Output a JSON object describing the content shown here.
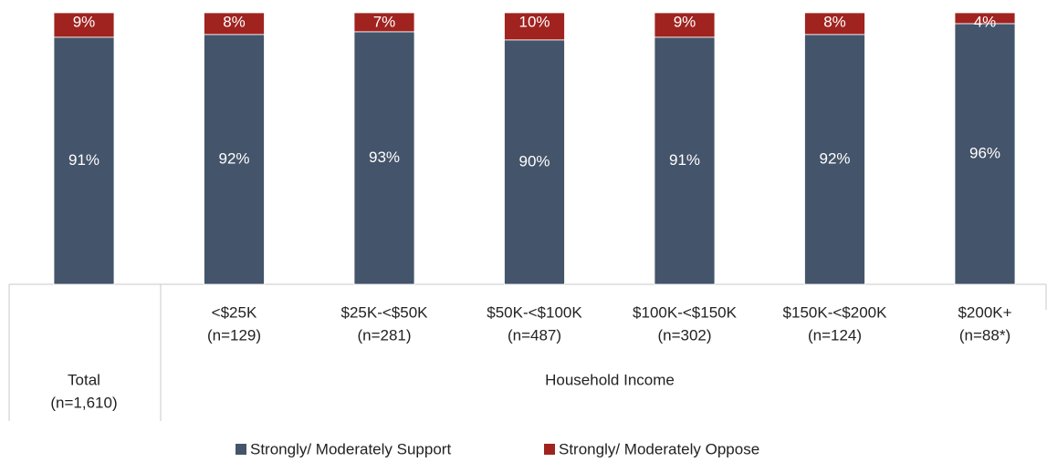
{
  "chart_data": {
    "type": "stacked_bar",
    "categories": [
      [
        "Total",
        "(n=1,610)"
      ],
      [
        "<$25K",
        "(n=129)"
      ],
      [
        "$25K-<$50K",
        "(n=281)"
      ],
      [
        "$50K-<$100K",
        "(n=487)"
      ],
      [
        "$100K-<$150K",
        "(n=302)"
      ],
      [
        "$150K-<$200K",
        "(n=124)"
      ],
      [
        "$200K+",
        "(n=88*)"
      ]
    ],
    "group_label": "Household Income",
    "series": [
      {
        "name": "Strongly/ Moderately Support",
        "color": "#44546a",
        "values": [
          91,
          92,
          93,
          90,
          91,
          92,
          96
        ],
        "value_labels": [
          "91%",
          "92%",
          "93%",
          "90%",
          "91%",
          "92%",
          "96%"
        ]
      },
      {
        "name": "Strongly/ Moderately Oppose",
        "color": "#a0231f",
        "values": [
          9,
          8,
          7,
          10,
          9,
          8,
          4
        ],
        "value_labels": [
          "9%",
          "8%",
          "7%",
          "10%",
          "9%",
          "8%",
          "4%"
        ]
      }
    ],
    "legend": "bottom"
  }
}
